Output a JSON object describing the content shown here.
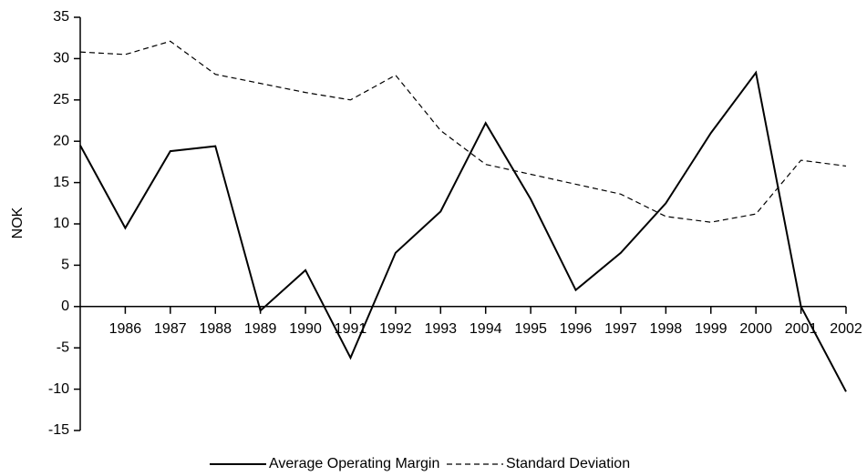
{
  "chart_data": {
    "type": "line",
    "y_label": "NOK",
    "categories": [
      null,
      "1986",
      "1987",
      "1988",
      "1989",
      "1990",
      "1991",
      "1992",
      "1993",
      "1994",
      "1995",
      "1996",
      "1997",
      "1998",
      "1999",
      "2000",
      "2001",
      "2002"
    ],
    "series": [
      {
        "name": "Average Operating Margin",
        "color": "#000000",
        "dash": "solid",
        "values": [
          19.5,
          9.5,
          18.8,
          19.4,
          -0.5,
          4.4,
          -6.2,
          6.5,
          11.5,
          22.2,
          13,
          2,
          6.5,
          12.5,
          21,
          28.3,
          0,
          -10.3
        ]
      },
      {
        "name": "Standard Deviation",
        "color": "#000000",
        "dash": "dashed",
        "values": [
          30.8,
          30.5,
          32.1,
          28.1,
          27,
          25.9,
          25,
          28,
          21.3,
          17.2,
          16,
          14.8,
          13.6,
          10.9,
          10.2,
          11.2,
          17.7,
          17.0
        ]
      }
    ],
    "ylim": [
      -15,
      35
    ],
    "yticks": [
      -15,
      -10,
      -5,
      0,
      5,
      10,
      15,
      20,
      25,
      30,
      35
    ],
    "grid": false,
    "legend": "bottom"
  }
}
